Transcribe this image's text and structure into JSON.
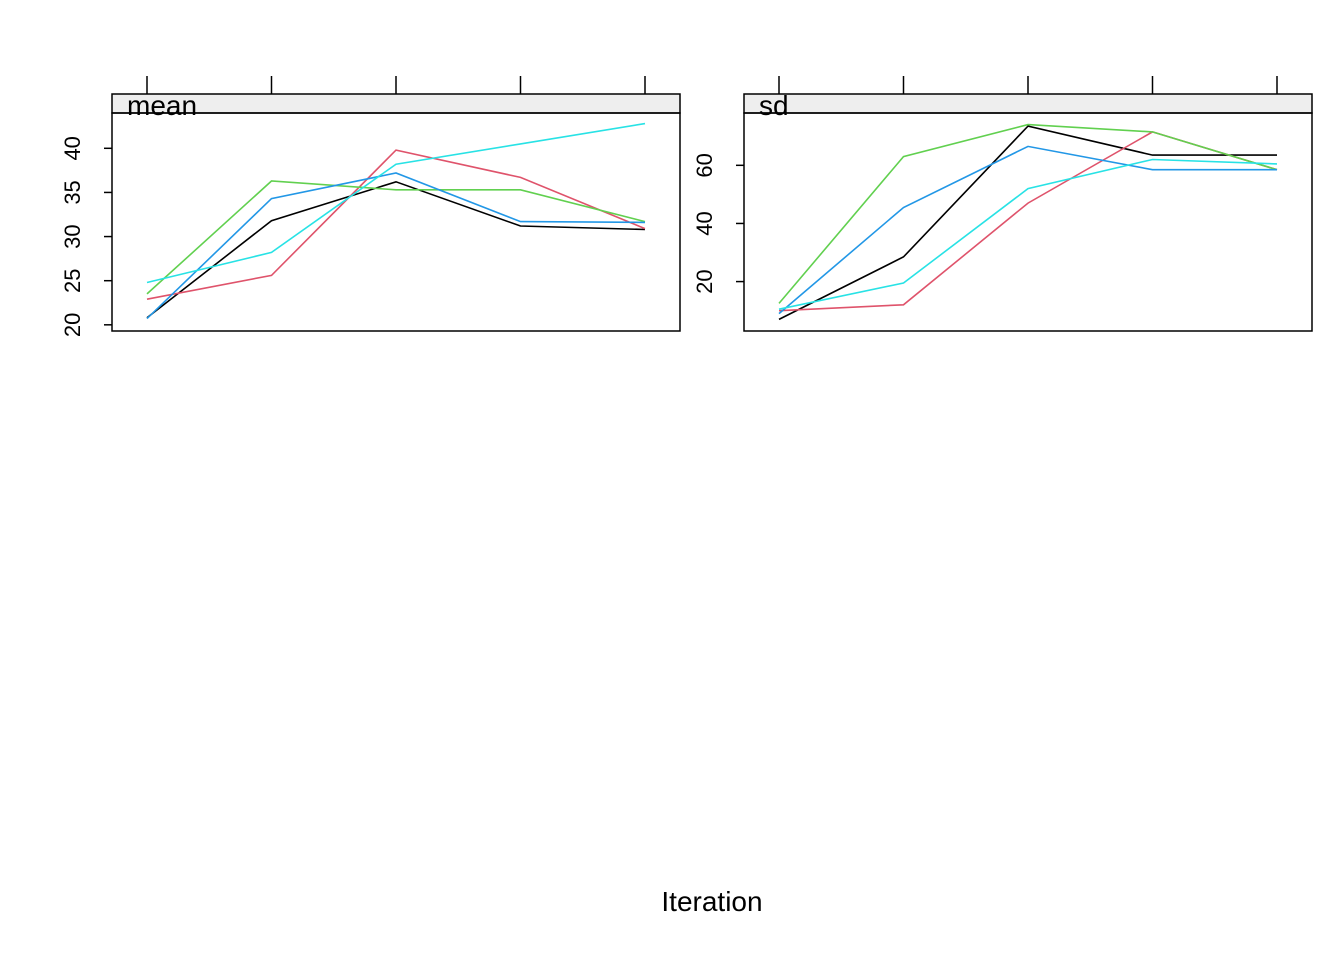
{
  "chart_data": {
    "type": "line",
    "xlabel": "Iteration",
    "x": [
      1,
      2,
      3,
      4,
      5
    ],
    "colors": [
      "#000000",
      "#DF536B",
      "#61D04F",
      "#2297E6",
      "#28E2E5"
    ],
    "panels": [
      {
        "strip_label": "mean",
        "ylim": [
          19.3,
          44
        ],
        "yticks": [
          20,
          25,
          30,
          35,
          40
        ],
        "series": [
          {
            "color": "#000000",
            "values": [
              20.8,
              31.8,
              36.2,
              31.2,
              30.8
            ]
          },
          {
            "color": "#DF536B",
            "values": [
              22.9,
              25.6,
              39.8,
              36.7,
              30.9
            ]
          },
          {
            "color": "#61D04F",
            "values": [
              23.5,
              36.3,
              35.3,
              35.3,
              31.7
            ]
          },
          {
            "color": "#2297E6",
            "values": [
              20.7,
              34.3,
              37.2,
              31.7,
              31.6
            ]
          },
          {
            "color": "#28E2E5",
            "values": [
              24.8,
              28.2,
              38.2,
              40.5,
              42.8
            ]
          }
        ]
      },
      {
        "strip_label": "sd",
        "ylim": [
          3,
          78
        ],
        "yticks": [
          20,
          40,
          60
        ],
        "series": [
          {
            "color": "#000000",
            "values": [
              7,
              28.5,
              73.5,
              63.5,
              63.5
            ]
          },
          {
            "color": "#DF536B",
            "values": [
              10,
              12,
              47,
              71.5,
              58.5
            ]
          },
          {
            "color": "#61D04F",
            "values": [
              12.5,
              63,
              74,
              71.5,
              58.5
            ]
          },
          {
            "color": "#2297E6",
            "values": [
              9,
              45.5,
              66.5,
              58.5,
              58.5
            ]
          },
          {
            "color": "#28E2E5",
            "values": [
              10.5,
              19.5,
              52,
              62,
              60.5
            ]
          }
        ]
      }
    ]
  }
}
